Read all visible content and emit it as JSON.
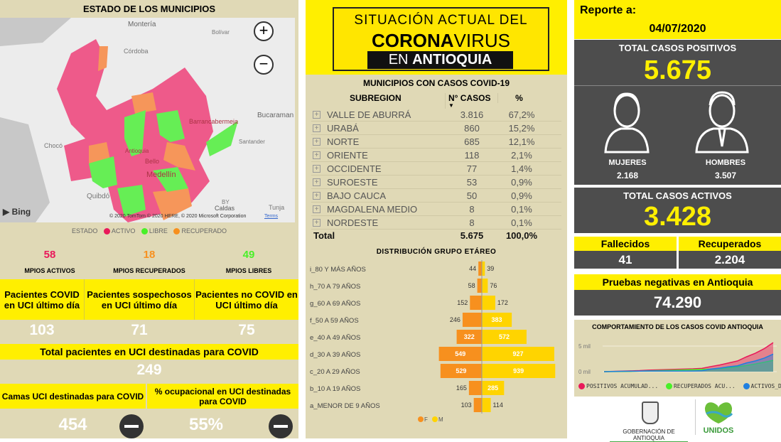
{
  "colors": {
    "yellow": "#ffef00",
    "tan": "#e0d9b6",
    "dark": "#4d4d4d",
    "activo": "#e9195a",
    "libre": "#49f028",
    "recuperado": "#f7901e",
    "female": "#f7901e",
    "male": "#ffd400"
  },
  "left": {
    "map_title": "ESTADO DE LOS MUNICIPIOS",
    "map": {
      "labels": [
        "Montería",
        "Bolívar",
        "Córdoba",
        "Bucaraman",
        "Barrancabermeja",
        "Santander",
        "Chocó",
        "Antioquia",
        "Bello",
        "Medellín",
        "Quibdó",
        "BY",
        "Tunja",
        "Caldas"
      ],
      "attribution": "© 2020 TomTom © 2020 HERE, © 2020 Microsoft Corporation",
      "terms": "Terms",
      "bing": "Bing",
      "zoom_in": "+",
      "zoom_out": "−"
    },
    "legend": {
      "title": "ESTADO",
      "items": [
        "ACTIVO",
        "LIBRE",
        "RECUPERADO"
      ]
    },
    "stats": [
      {
        "value": "58",
        "label": "MPIOS ACTIVOS"
      },
      {
        "value": "18",
        "label": "MPIOS RECUPERADOS"
      },
      {
        "value": "49",
        "label": "MPIOS LIBRES"
      }
    ],
    "uci": [
      {
        "label": "Pacientes COVID en UCI último día",
        "value": "103"
      },
      {
        "label": "Pacientes sospechosos en UCI último día",
        "value": "71"
      },
      {
        "label": "Pacientes no COVID en UCI último día",
        "value": "75"
      }
    ],
    "total_uci": {
      "label": "Total pacientes en UCI destinadas para COVID",
      "value": "249"
    },
    "camas": {
      "label": "Camas UCI destinadas para COVID",
      "value": "454"
    },
    "ocupacion": {
      "label": "% ocupacional en UCI destinadas para COVID",
      "value": "55%"
    }
  },
  "mid": {
    "banner": {
      "line1": "SITUACIÓN ACTUAL DEL",
      "line2a": "CORONA",
      "line2b": "VIRUS",
      "line3a": "EN ",
      "line3b": "ANTIOQUIA"
    },
    "table": {
      "title": "MUNICIPIOS CON CASOS COVID-19",
      "headers": [
        "SUBREGION",
        "N° CASOS",
        "%"
      ],
      "rows": [
        [
          "VALLE DE ABURRÁ",
          "3.816",
          "67,2%"
        ],
        [
          "URABÁ",
          "860",
          "15,2%"
        ],
        [
          "NORTE",
          "685",
          "12,1%"
        ],
        [
          "ORIENTE",
          "118",
          "2,1%"
        ],
        [
          "OCCIDENTE",
          "77",
          "1,4%"
        ],
        [
          "SUROESTE",
          "53",
          "0,9%"
        ],
        [
          "BAJO CAUCA",
          "50",
          "0,9%"
        ],
        [
          "MAGDALENA MEDIO",
          "8",
          "0,1%"
        ],
        [
          "NORDESTE",
          "8",
          "0,1%"
        ]
      ],
      "total": [
        "Total",
        "5.675",
        "100,0%"
      ]
    }
  },
  "right": {
    "reporte_label": "Reporte a:",
    "fecha": "04/07/2020",
    "positivos": {
      "label": "TOTAL CASOS POSITIVOS",
      "value": "5.675"
    },
    "mujeres": {
      "label": "MUJERES",
      "value": "2.168"
    },
    "hombres": {
      "label": "HOMBRES",
      "value": "3.507"
    },
    "activos": {
      "label": "TOTAL CASOS ACTIVOS",
      "value": "3.428"
    },
    "fallecidos": {
      "label": "Fallecidos",
      "value": "41"
    },
    "recuperados": {
      "label": "Recuperados",
      "value": "2.204"
    },
    "negativas": {
      "label": "Pruebas negativas en Antioquia",
      "value": "74.290"
    },
    "footer": {
      "gob": "GOBERNACIÓN DE ANTIOQUIA",
      "unidos": "UNIDOS"
    }
  },
  "chart_data": [
    {
      "type": "bar",
      "title": "DISTRIBUCIÓN GRUPO ETÁREO",
      "orientation": "horizontal-pyramid",
      "categories": [
        "i_80 Y MÁS AÑOS",
        "h_70 A 79 AÑOS",
        "g_60 A 69 AÑOS",
        "f_50 A 59 AÑOS",
        "e_40 A 49 AÑOS",
        "d_30 A 39 AÑOS",
        "c_20 A 29 AÑOS",
        "b_10 A 19 AÑOS",
        "a_MENOR DE 9 AÑOS"
      ],
      "series": [
        {
          "name": "F",
          "values": [
            44,
            58,
            152,
            246,
            322,
            549,
            529,
            165,
            103
          ]
        },
        {
          "name": "M",
          "values": [
            39,
            76,
            172,
            383,
            572,
            927,
            939,
            285,
            114
          ]
        }
      ],
      "legend": "bottom"
    },
    {
      "type": "area",
      "title": "COMPORTAMIENTO DE LOS CASOS COVID ANTIOQUIA",
      "yticks": [
        "0 mil",
        "5 mil"
      ],
      "ylim": [
        0,
        5.8
      ],
      "unit": "mil",
      "legend": "bottom",
      "series": [
        {
          "name": "POSITIVOS ACUMULAD...",
          "color": "#e9195a",
          "values": [
            0,
            0.05,
            0.1,
            0.15,
            0.2,
            0.3,
            0.35,
            0.4,
            0.45,
            0.5,
            0.55,
            0.65,
            1.0,
            1.3,
            1.7,
            2.1,
            2.9,
            3.6,
            4.5,
            5.675
          ]
        },
        {
          "name": "RECUPERADOS ACU...",
          "color": "#49f028",
          "values": [
            0,
            0.01,
            0.03,
            0.06,
            0.1,
            0.15,
            0.2,
            0.25,
            0.3,
            0.35,
            0.4,
            0.45,
            0.5,
            0.6,
            0.75,
            0.95,
            1.2,
            1.5,
            1.85,
            2.204
          ]
        },
        {
          "name": "ACTIVOS_DÍA",
          "color": "#1f7fe0",
          "values": [
            0,
            0.04,
            0.07,
            0.09,
            0.1,
            0.14,
            0.14,
            0.14,
            0.14,
            0.14,
            0.14,
            0.19,
            0.5,
            0.7,
            0.95,
            1.15,
            1.7,
            2.1,
            2.65,
            3.428
          ]
        }
      ]
    }
  ]
}
